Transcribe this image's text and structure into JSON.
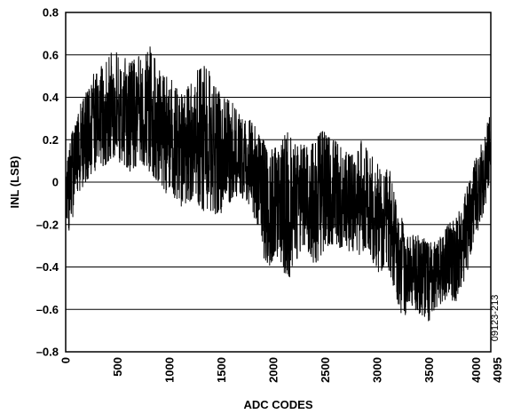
{
  "chart_data": {
    "type": "line",
    "title": "",
    "xlabel": "ADC CODES",
    "ylabel": "INL (LSB)",
    "xlim": [
      0,
      4095
    ],
    "ylim": [
      -0.8,
      0.8
    ],
    "xticks": [
      0,
      500,
      1000,
      1500,
      2000,
      2500,
      3000,
      3500,
      4000,
      4095
    ],
    "xtick_labels": [
      "0",
      "500",
      "1000",
      "1500",
      "2000",
      "2500",
      "3000",
      "3500",
      "4000",
      "4095"
    ],
    "yticks": [
      -0.8,
      -0.6,
      -0.4,
      -0.2,
      0,
      0.2,
      0.4,
      0.6,
      0.8
    ],
    "ytick_labels": [
      "–0.8",
      "–0.6",
      "–0.4",
      "–0.2",
      "0",
      "0.2",
      "0.4",
      "0.6",
      "0.8"
    ],
    "grid": "horizontal",
    "legend": "none",
    "figure_id": "09123-213",
    "line_color": "#000000",
    "series": [
      {
        "envelope": {
          "x": [
            0,
            50,
            100,
            150,
            200,
            250,
            300,
            350,
            400,
            450,
            500,
            550,
            600,
            650,
            700,
            750,
            800,
            850,
            900,
            950,
            1000,
            1050,
            1100,
            1150,
            1200,
            1250,
            1300,
            1350,
            1400,
            1450,
            1500,
            1550,
            1600,
            1650,
            1700,
            1750,
            1800,
            1850,
            1900,
            1950,
            2000,
            2050,
            2100,
            2150,
            2200,
            2250,
            2300,
            2350,
            2400,
            2450,
            2500,
            2550,
            2600,
            2650,
            2700,
            2750,
            2800,
            2850,
            2900,
            2950,
            3000,
            3050,
            3100,
            3150,
            3200,
            3250,
            3300,
            3350,
            3400,
            3450,
            3500,
            3550,
            3600,
            3650,
            3700,
            3750,
            3800,
            3850,
            3900,
            3950,
            4000,
            4050,
            4095
          ],
          "upper": [
            0.07,
            0.22,
            0.3,
            0.38,
            0.43,
            0.5,
            0.53,
            0.57,
            0.6,
            0.63,
            0.61,
            0.6,
            0.57,
            0.58,
            0.6,
            0.59,
            0.65,
            0.62,
            0.55,
            0.5,
            0.5,
            0.46,
            0.42,
            0.44,
            0.48,
            0.52,
            0.54,
            0.56,
            0.51,
            0.45,
            0.42,
            0.4,
            0.38,
            0.34,
            0.32,
            0.3,
            0.29,
            0.24,
            0.21,
            0.14,
            0.16,
            0.18,
            0.24,
            0.24,
            0.22,
            0.19,
            0.18,
            0.16,
            0.21,
            0.24,
            0.25,
            0.22,
            0.2,
            0.19,
            0.16,
            0.15,
            0.14,
            0.2,
            0.17,
            0.16,
            0.1,
            0.05,
            0.1,
            0.0,
            -0.12,
            -0.18,
            -0.22,
            -0.25,
            -0.25,
            -0.26,
            -0.27,
            -0.27,
            -0.24,
            -0.21,
            -0.19,
            -0.17,
            -0.12,
            -0.05,
            0.04,
            0.12,
            0.18,
            0.24,
            0.45
          ],
          "lower": [
            -0.3,
            -0.2,
            -0.12,
            -0.05,
            0.0,
            0.03,
            0.06,
            0.07,
            0.08,
            0.12,
            0.1,
            0.08,
            0.05,
            0.04,
            0.06,
            0.08,
            0.05,
            0.02,
            -0.02,
            -0.06,
            -0.04,
            -0.08,
            -0.12,
            -0.12,
            -0.09,
            -0.08,
            -0.13,
            -0.15,
            -0.14,
            -0.16,
            -0.15,
            -0.12,
            -0.09,
            -0.07,
            -0.09,
            -0.1,
            -0.15,
            -0.22,
            -0.35,
            -0.42,
            -0.37,
            -0.35,
            -0.44,
            -0.46,
            -0.4,
            -0.34,
            -0.32,
            -0.35,
            -0.4,
            -0.37,
            -0.33,
            -0.3,
            -0.3,
            -0.32,
            -0.34,
            -0.33,
            -0.32,
            -0.37,
            -0.3,
            -0.38,
            -0.42,
            -0.44,
            -0.4,
            -0.48,
            -0.6,
            -0.64,
            -0.62,
            -0.6,
            -0.62,
            -0.64,
            -0.66,
            -0.62,
            -0.58,
            -0.56,
            -0.55,
            -0.58,
            -0.5,
            -0.47,
            -0.35,
            -0.25,
            -0.2,
            -0.1,
            0.05
          ]
        }
      }
    ]
  }
}
